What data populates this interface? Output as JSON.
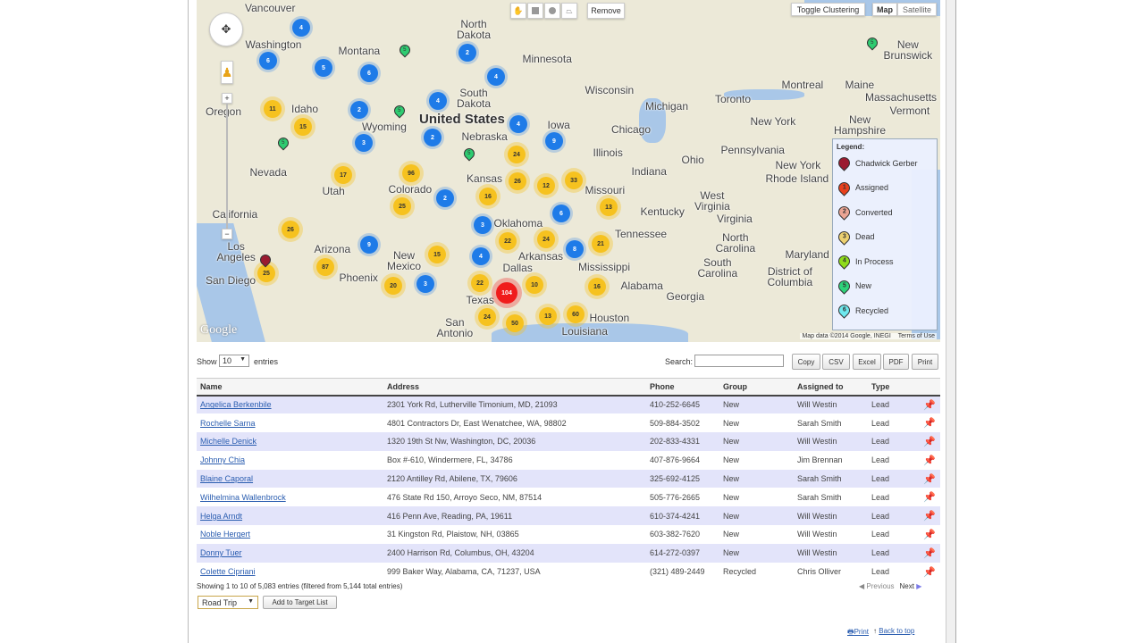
{
  "map": {
    "labels": [
      "Vancouver",
      "Washington",
      "Montana",
      "North\nDakota",
      "Minnesota",
      "Wisconsin",
      "Michigan",
      "Toronto",
      "Montreal",
      "Maine",
      "New\nBrunswick",
      "Oregon",
      "Idaho",
      "Wyoming",
      "South\nDakota",
      "Nebraska",
      "Iowa",
      "Chicago",
      "Illinois",
      "Indiana",
      "Ohio",
      "Pennsylvania",
      "New York",
      "New York",
      "Nevada",
      "Utah",
      "Colorado",
      "United States",
      "Kansas",
      "Missouri",
      "Kentucky",
      "West\nVirginia",
      "Virginia",
      "California",
      "Tennessee",
      "North\nCarolina",
      "Oklahoma",
      "Arkansas",
      "Los\nAngeles",
      "Arizona",
      "New\nMexico",
      "Mississippi",
      "South\nCarolina",
      "Phoenix",
      "San Diego",
      "Dallas",
      "Alabama",
      "Georgia",
      "Texas",
      "Louisiana",
      "San\nAntonio",
      "Houston",
      "District of\nColumbia",
      "Vermont",
      "New\nHampshire",
      "Massachusetts",
      "Rhode Island",
      "Maryland"
    ],
    "clusters": [
      {
        "count": "4",
        "status": "blue"
      },
      {
        "count": "6",
        "status": "blue"
      },
      {
        "count": "5",
        "status": "blue"
      },
      {
        "count": "6",
        "status": "blue"
      },
      {
        "count": "2",
        "status": "blue"
      },
      {
        "count": "4",
        "status": "blue"
      },
      {
        "count": "4",
        "status": "blue"
      },
      {
        "count": "2",
        "status": "blue"
      },
      {
        "count": "4",
        "status": "blue"
      },
      {
        "count": "3",
        "status": "blue"
      },
      {
        "count": "2",
        "status": "blue"
      },
      {
        "count": "9",
        "status": "blue"
      },
      {
        "count": "2",
        "status": "blue"
      },
      {
        "count": "3",
        "status": "blue"
      },
      {
        "count": "6",
        "status": "blue"
      },
      {
        "count": "9",
        "status": "blue"
      },
      {
        "count": "4",
        "status": "blue"
      },
      {
        "count": "3",
        "status": "blue"
      },
      {
        "count": "8",
        "status": "blue"
      },
      {
        "count": "11",
        "status": "yellow"
      },
      {
        "count": "15",
        "status": "yellow"
      },
      {
        "count": "17",
        "status": "yellow"
      },
      {
        "count": "96",
        "status": "yellow"
      },
      {
        "count": "24",
        "status": "yellow"
      },
      {
        "count": "16",
        "status": "yellow"
      },
      {
        "count": "26",
        "status": "yellow"
      },
      {
        "count": "12",
        "status": "yellow"
      },
      {
        "count": "33",
        "status": "yellow"
      },
      {
        "count": "25",
        "status": "yellow"
      },
      {
        "count": "13",
        "status": "yellow"
      },
      {
        "count": "26",
        "status": "yellow"
      },
      {
        "count": "22",
        "status": "yellow"
      },
      {
        "count": "24",
        "status": "yellow"
      },
      {
        "count": "21",
        "status": "yellow"
      },
      {
        "count": "87",
        "status": "yellow"
      },
      {
        "count": "15",
        "status": "yellow"
      },
      {
        "count": "25",
        "status": "yellow"
      },
      {
        "count": "20",
        "status": "yellow"
      },
      {
        "count": "22",
        "status": "yellow"
      },
      {
        "count": "10",
        "status": "yellow"
      },
      {
        "count": "16",
        "status": "yellow"
      },
      {
        "count": "24",
        "status": "yellow"
      },
      {
        "count": "50",
        "status": "yellow"
      },
      {
        "count": "13",
        "status": "yellow"
      },
      {
        "count": "60",
        "status": "yellow"
      },
      {
        "count": "104",
        "status": "red"
      }
    ],
    "pins": [
      {
        "label": "5",
        "color": "#2ecc71"
      },
      {
        "label": "5",
        "color": "#2ecc71"
      },
      {
        "label": "5",
        "color": "#2ecc71"
      },
      {
        "label": "5",
        "color": "#2ecc71"
      },
      {
        "label": "5",
        "color": "#2ecc71"
      },
      {
        "label": "",
        "color": "#9b1b30"
      }
    ],
    "tools": {
      "hand": "hand-icon",
      "rectangle": "rectangle-icon",
      "circle": "circle-icon",
      "polygon": "polygon-icon",
      "remove": "Remove"
    },
    "toggle_clustering": "Toggle Clustering",
    "map_type": [
      "Map",
      "Satellite"
    ],
    "google": "Google",
    "attribution": "Map data ©2014 Google, INEGI",
    "terms": "Terms of Use",
    "legend": {
      "title": "Legend:",
      "items": [
        {
          "num": "",
          "label": "Chadwick Gerber",
          "color": "#9b1b30"
        },
        {
          "num": "1",
          "label": "Assigned",
          "color": "#e8401c"
        },
        {
          "num": "2",
          "label": "Converted",
          "color": "#eba594"
        },
        {
          "num": "3",
          "label": "Dead",
          "color": "#ecd070"
        },
        {
          "num": "4",
          "label": "In Process",
          "color": "#8fdc1c"
        },
        {
          "num": "5",
          "label": "New",
          "color": "#2ed27a"
        },
        {
          "num": "6",
          "label": "Recycled",
          "color": "#6ee8ee"
        }
      ]
    }
  },
  "table_controls": {
    "show": "Show",
    "length": "10",
    "entries": "entries",
    "search_label": "Search:",
    "search_value": "",
    "buttons": [
      "Copy",
      "CSV",
      "Excel",
      "PDF",
      "Print"
    ]
  },
  "table": {
    "columns": [
      "Name",
      "Address",
      "Phone",
      "Group",
      "Assigned to",
      "Type"
    ],
    "rows": [
      [
        "Angelica Berkenbile",
        "2301 York Rd, Lutherville Timonium, MD, 21093",
        "410-252-6645",
        "New",
        "Will Westin",
        "Lead"
      ],
      [
        "Rochelle Sarna",
        "4801 Contractors Dr, East Wenatchee, WA, 98802",
        "509-884-3502",
        "New",
        "Sarah Smith",
        "Lead"
      ],
      [
        "Michelle Denick",
        "1320 19th St Nw, Washington, DC, 20036",
        "202-833-4331",
        "New",
        "Will Westin",
        "Lead"
      ],
      [
        "Johnny Chia",
        "Box #-610, Windermere, FL, 34786",
        "407-876-9664",
        "New",
        "Jim Brennan",
        "Lead"
      ],
      [
        "Blaine Caporal",
        "2120 Antilley Rd, Abilene, TX, 79606",
        "325-692-4125",
        "New",
        "Sarah Smith",
        "Lead"
      ],
      [
        "Wilhelmina Wallenbrock",
        "476 State Rd 150, Arroyo Seco, NM, 87514",
        "505-776-2665",
        "New",
        "Sarah Smith",
        "Lead"
      ],
      [
        "Helga Arndt",
        "416 Penn Ave, Reading, PA, 19611",
        "610-374-4241",
        "New",
        "Will Westin",
        "Lead"
      ],
      [
        "Noble Hergert",
        "31 Kingston Rd, Plaistow, NH, 03865",
        "603-382-7620",
        "New",
        "Will Westin",
        "Lead"
      ],
      [
        "Donny Tuer",
        "2400 Harrison Rd, Columbus, OH, 43204",
        "614-272-0397",
        "New",
        "Will Westin",
        "Lead"
      ],
      [
        "Colette Cipriani",
        "999 Baker Way, Alabama, CA, 71237, USA",
        "(321) 489-2449",
        "Recycled",
        "Chris Olliver",
        "Lead"
      ]
    ]
  },
  "info": "Showing 1 to 10 of 5,083 entries (filtered from 5,144 total entries)",
  "pagination": {
    "previous": "Previous",
    "next": "Next"
  },
  "target_list": {
    "selected": "Road Trip",
    "button": "Add to Target List"
  },
  "footer": {
    "print": "Print",
    "back_to_top": "Back to top"
  }
}
